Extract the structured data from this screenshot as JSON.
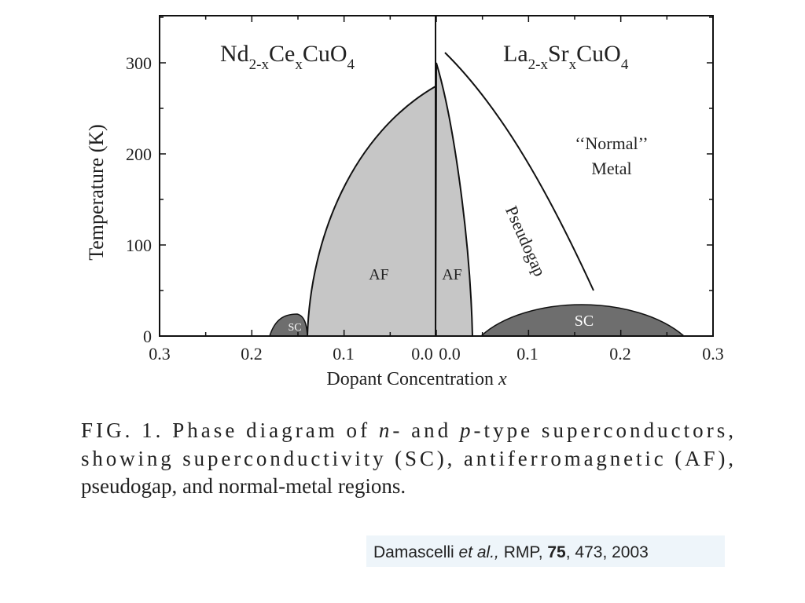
{
  "figure": {
    "left_compound": [
      "Nd",
      "2-x",
      "Ce",
      "x",
      "CuO",
      "4"
    ],
    "right_compound": [
      "La",
      "2-x",
      "Sr",
      "x",
      "CuO",
      "4"
    ],
    "y_axis": {
      "title": "Temperature (K)",
      "tick_labels": [
        0,
        100,
        200,
        300
      ]
    },
    "x_axis": {
      "title": [
        "Dopant Concentration ",
        "x"
      ],
      "tick_labels": [
        "0.3",
        "0.2",
        "0.1",
        "0.0",
        "0.0",
        "0.1",
        "0.2",
        "0.3"
      ]
    },
    "region_labels": {
      "af_left": "AF",
      "af_right": "AF",
      "sc_left": "SC",
      "sc_right": "SC",
      "pseudogap": "Pseudogap",
      "normal": "‘‘Normal’’",
      "metal": "Metal"
    }
  },
  "caption": {
    "lines": [
      [
        "FIG. 1. Phase diagram of ",
        "n",
        "- and ",
        "p",
        "-type superconductors,"
      ],
      [
        "showing superconductivity (SC), antiferromagnetic (AF),"
      ],
      [
        "pseudogap, and normal-metal regions."
      ]
    ]
  },
  "citation": [
    "Damascelli ",
    "et al.,",
    " RMP, ",
    "75",
    ", 473, 2003"
  ]
}
